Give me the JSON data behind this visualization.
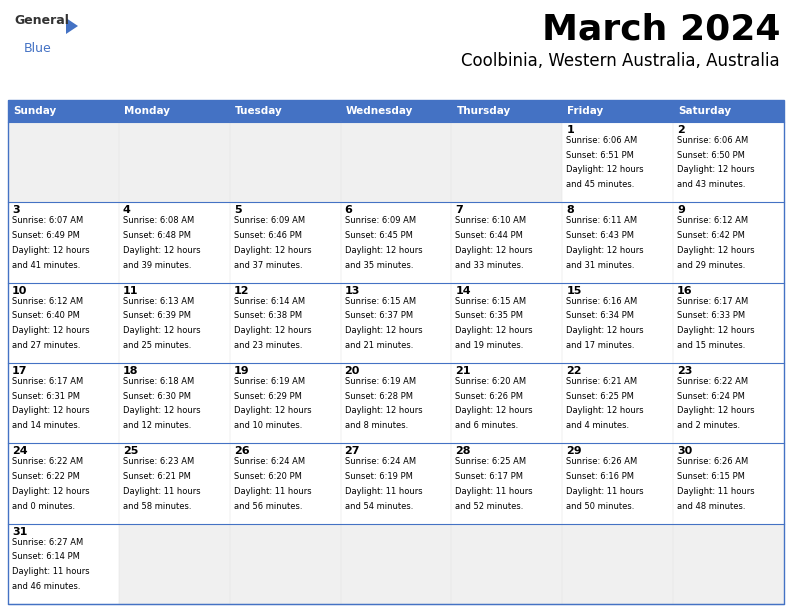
{
  "title": "March 2024",
  "subtitle": "Coolbinia, Western Australia, Australia",
  "header_bg": "#4472C4",
  "header_text_color": "#FFFFFF",
  "cell_bg": "#FFFFFF",
  "empty_cell_bg": "#F0F0F0",
  "row_sep_color": "#4472C4",
  "days_of_week": [
    "Sunday",
    "Monday",
    "Tuesday",
    "Wednesday",
    "Thursday",
    "Friday",
    "Saturday"
  ],
  "calendar": [
    [
      null,
      null,
      null,
      null,
      null,
      {
        "day": 1,
        "sunrise": "6:06 AM",
        "sunset": "6:51 PM",
        "daylight": "12 hours\nand 45 minutes."
      },
      {
        "day": 2,
        "sunrise": "6:06 AM",
        "sunset": "6:50 PM",
        "daylight": "12 hours\nand 43 minutes."
      }
    ],
    [
      {
        "day": 3,
        "sunrise": "6:07 AM",
        "sunset": "6:49 PM",
        "daylight": "12 hours\nand 41 minutes."
      },
      {
        "day": 4,
        "sunrise": "6:08 AM",
        "sunset": "6:48 PM",
        "daylight": "12 hours\nand 39 minutes."
      },
      {
        "day": 5,
        "sunrise": "6:09 AM",
        "sunset": "6:46 PM",
        "daylight": "12 hours\nand 37 minutes."
      },
      {
        "day": 6,
        "sunrise": "6:09 AM",
        "sunset": "6:45 PM",
        "daylight": "12 hours\nand 35 minutes."
      },
      {
        "day": 7,
        "sunrise": "6:10 AM",
        "sunset": "6:44 PM",
        "daylight": "12 hours\nand 33 minutes."
      },
      {
        "day": 8,
        "sunrise": "6:11 AM",
        "sunset": "6:43 PM",
        "daylight": "12 hours\nand 31 minutes."
      },
      {
        "day": 9,
        "sunrise": "6:12 AM",
        "sunset": "6:42 PM",
        "daylight": "12 hours\nand 29 minutes."
      }
    ],
    [
      {
        "day": 10,
        "sunrise": "6:12 AM",
        "sunset": "6:40 PM",
        "daylight": "12 hours\nand 27 minutes."
      },
      {
        "day": 11,
        "sunrise": "6:13 AM",
        "sunset": "6:39 PM",
        "daylight": "12 hours\nand 25 minutes."
      },
      {
        "day": 12,
        "sunrise": "6:14 AM",
        "sunset": "6:38 PM",
        "daylight": "12 hours\nand 23 minutes."
      },
      {
        "day": 13,
        "sunrise": "6:15 AM",
        "sunset": "6:37 PM",
        "daylight": "12 hours\nand 21 minutes."
      },
      {
        "day": 14,
        "sunrise": "6:15 AM",
        "sunset": "6:35 PM",
        "daylight": "12 hours\nand 19 minutes."
      },
      {
        "day": 15,
        "sunrise": "6:16 AM",
        "sunset": "6:34 PM",
        "daylight": "12 hours\nand 17 minutes."
      },
      {
        "day": 16,
        "sunrise": "6:17 AM",
        "sunset": "6:33 PM",
        "daylight": "12 hours\nand 15 minutes."
      }
    ],
    [
      {
        "day": 17,
        "sunrise": "6:17 AM",
        "sunset": "6:31 PM",
        "daylight": "12 hours\nand 14 minutes."
      },
      {
        "day": 18,
        "sunrise": "6:18 AM",
        "sunset": "6:30 PM",
        "daylight": "12 hours\nand 12 minutes."
      },
      {
        "day": 19,
        "sunrise": "6:19 AM",
        "sunset": "6:29 PM",
        "daylight": "12 hours\nand 10 minutes."
      },
      {
        "day": 20,
        "sunrise": "6:19 AM",
        "sunset": "6:28 PM",
        "daylight": "12 hours\nand 8 minutes."
      },
      {
        "day": 21,
        "sunrise": "6:20 AM",
        "sunset": "6:26 PM",
        "daylight": "12 hours\nand 6 minutes."
      },
      {
        "day": 22,
        "sunrise": "6:21 AM",
        "sunset": "6:25 PM",
        "daylight": "12 hours\nand 4 minutes."
      },
      {
        "day": 23,
        "sunrise": "6:22 AM",
        "sunset": "6:24 PM",
        "daylight": "12 hours\nand 2 minutes."
      }
    ],
    [
      {
        "day": 24,
        "sunrise": "6:22 AM",
        "sunset": "6:22 PM",
        "daylight": "12 hours\nand 0 minutes."
      },
      {
        "day": 25,
        "sunrise": "6:23 AM",
        "sunset": "6:21 PM",
        "daylight": "11 hours\nand 58 minutes."
      },
      {
        "day": 26,
        "sunrise": "6:24 AM",
        "sunset": "6:20 PM",
        "daylight": "11 hours\nand 56 minutes."
      },
      {
        "day": 27,
        "sunrise": "6:24 AM",
        "sunset": "6:19 PM",
        "daylight": "11 hours\nand 54 minutes."
      },
      {
        "day": 28,
        "sunrise": "6:25 AM",
        "sunset": "6:17 PM",
        "daylight": "11 hours\nand 52 minutes."
      },
      {
        "day": 29,
        "sunrise": "6:26 AM",
        "sunset": "6:16 PM",
        "daylight": "11 hours\nand 50 minutes."
      },
      {
        "day": 30,
        "sunrise": "6:26 AM",
        "sunset": "6:15 PM",
        "daylight": "11 hours\nand 48 minutes."
      }
    ],
    [
      {
        "day": 31,
        "sunrise": "6:27 AM",
        "sunset": "6:14 PM",
        "daylight": "11 hours\nand 46 minutes."
      },
      null,
      null,
      null,
      null,
      null,
      null
    ]
  ],
  "fig_width": 7.92,
  "fig_height": 6.12,
  "dpi": 100,
  "title_fontsize": 26,
  "subtitle_fontsize": 12,
  "header_fontsize": 7.5,
  "day_num_fontsize": 8,
  "cell_text_fontsize": 6.0,
  "fig_bg": "#FFFFFF",
  "logo_general_color": "#333333",
  "logo_blue_color": "#4472C4",
  "logo_triangle_color": "#4472C4"
}
